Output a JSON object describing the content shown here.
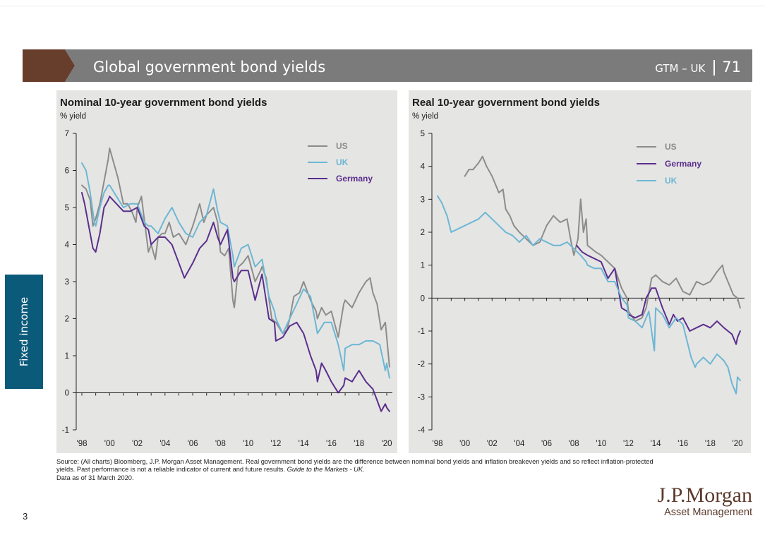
{
  "header": {
    "title": "Global government bond yields",
    "code": "GTM – UK",
    "page": "71",
    "accent_color": "#673d2c",
    "bar_color": "#7b7b7b"
  },
  "sidebar": {
    "label": "Fixed income",
    "color": "#0c5a7a"
  },
  "chart_data": [
    {
      "type": "line",
      "title": "Nominal 10-year government bond yields",
      "ylabel": "% yield",
      "ylim": [
        -1,
        7
      ],
      "yticks": [
        "-1",
        "0",
        "1",
        "2",
        "3",
        "4",
        "5",
        "6",
        "7"
      ],
      "xlim": [
        1998,
        2020.5
      ],
      "xtick_labels": [
        "'98",
        "'00",
        "'02",
        "'04",
        "'06",
        "'08",
        "'10",
        "'12",
        "'14",
        "'16",
        "'18",
        "'20"
      ],
      "legend_position": "top-right",
      "grid": false,
      "series": [
        {
          "name": "US",
          "color": "#8c8c8c",
          "x": [
            1998,
            1998.3,
            1998.6,
            1998.8,
            1999,
            1999.3,
            1999.6,
            1999.9,
            2000,
            2000.3,
            2000.6,
            2001,
            2001.3,
            2001.6,
            2001.9,
            2002,
            2002.3,
            2002.6,
            2002.8,
            2003,
            2003.3,
            2003.5,
            2003.8,
            2004,
            2004.3,
            2004.6,
            2005,
            2005.5,
            2006,
            2006.5,
            2006.8,
            2007,
            2007.5,
            2007.8,
            2008,
            2008.3,
            2008.6,
            2008.9,
            2009,
            2009.3,
            2009.6,
            2010,
            2010.5,
            2010.9,
            2011,
            2011.3,
            2011.7,
            2012,
            2012.5,
            2012.8,
            2013,
            2013.3,
            2013.7,
            2014,
            2014.5,
            2014.9,
            2015,
            2015.3,
            2015.6,
            2016,
            2016.5,
            2016.9,
            2017,
            2017.5,
            2018,
            2018.5,
            2018.8,
            2019,
            2019.3,
            2019.6,
            2019.9,
            2020,
            2020.2
          ],
          "values": [
            5.6,
            5.5,
            5.2,
            4.5,
            4.7,
            5.1,
            5.7,
            6.3,
            6.6,
            6.2,
            5.8,
            5.1,
            5.1,
            4.9,
            4.6,
            5.0,
            5.3,
            4.4,
            3.8,
            4.0,
            3.6,
            4.2,
            4.3,
            4.3,
            4.6,
            4.2,
            4.3,
            4.0,
            4.5,
            5.1,
            4.6,
            4.8,
            5.0,
            4.6,
            3.8,
            3.7,
            3.9,
            2.5,
            2.3,
            3.4,
            3.5,
            3.7,
            3.0,
            3.3,
            3.4,
            3.1,
            2.0,
            1.9,
            1.6,
            1.7,
            2.0,
            2.6,
            2.7,
            3.0,
            2.5,
            2.2,
            2.0,
            2.3,
            2.1,
            2.2,
            1.5,
            2.4,
            2.5,
            2.3,
            2.7,
            3.0,
            3.1,
            2.7,
            2.4,
            1.7,
            1.9,
            1.5,
            0.7
          ]
        },
        {
          "name": "UK",
          "color": "#6db7d4",
          "x": [
            1998,
            1998.3,
            1998.6,
            1998.9,
            1999,
            1999.3,
            1999.6,
            1999.9,
            2000,
            2000.5,
            2001,
            2001.5,
            2002,
            2002.5,
            2002.8,
            2003,
            2003.5,
            2004,
            2004.5,
            2005,
            2005.5,
            2006,
            2006.5,
            2007,
            2007.5,
            2007.8,
            2008,
            2008.5,
            2008.9,
            2009,
            2009.5,
            2010,
            2010.5,
            2011,
            2011.5,
            2011.9,
            2012,
            2012.5,
            2013,
            2013.5,
            2014,
            2014.5,
            2014.9,
            2015,
            2015.5,
            2016,
            2016.5,
            2016.9,
            2017,
            2017.5,
            2018,
            2018.5,
            2019,
            2019.5,
            2019.9,
            2020,
            2020.2
          ],
          "values": [
            6.2,
            6.0,
            5.4,
            4.6,
            4.5,
            5.0,
            5.4,
            5.6,
            5.6,
            5.3,
            5.0,
            5.1,
            5.1,
            4.6,
            4.5,
            4.5,
            4.3,
            4.7,
            5.0,
            4.6,
            4.3,
            4.2,
            4.6,
            4.8,
            5.5,
            4.9,
            4.6,
            4.5,
            3.7,
            3.4,
            3.9,
            4.0,
            3.4,
            3.6,
            2.6,
            2.2,
            2.0,
            1.6,
            2.0,
            2.4,
            2.8,
            2.6,
            1.8,
            1.6,
            1.9,
            1.9,
            1.3,
            0.6,
            1.2,
            1.3,
            1.3,
            1.4,
            1.4,
            1.3,
            0.6,
            0.8,
            0.4
          ]
        },
        {
          "name": "Germany",
          "color": "#5b2e8c",
          "x": [
            1998,
            1998.2,
            1998.5,
            1998.8,
            1999,
            1999.3,
            1999.6,
            1999.9,
            2000,
            2000.5,
            2001,
            2001.5,
            2002,
            2002.5,
            2002.8,
            2003,
            2003.5,
            2004,
            2004.5,
            2005,
            2005.4,
            2005.7,
            2006,
            2006.5,
            2007,
            2007.5,
            2007.8,
            2008,
            2008.5,
            2008.9,
            2009,
            2009.5,
            2010,
            2010.5,
            2011,
            2011.5,
            2011.9,
            2012,
            2012.5,
            2013,
            2013.5,
            2014,
            2014.5,
            2014.9,
            2015,
            2015.3,
            2015.6,
            2016,
            2016.5,
            2016.9,
            2017,
            2017.5,
            2018,
            2018.5,
            2019,
            2019.3,
            2019.6,
            2019.9,
            2020,
            2020.2
          ],
          "values": [
            5.4,
            5.1,
            4.5,
            3.9,
            3.8,
            4.3,
            5.0,
            5.2,
            5.3,
            5.1,
            4.9,
            4.9,
            5.0,
            4.5,
            4.4,
            4.0,
            4.2,
            4.2,
            4.0,
            3.5,
            3.1,
            3.3,
            3.5,
            3.9,
            4.1,
            4.6,
            4.2,
            4.0,
            4.4,
            3.1,
            3.0,
            3.3,
            3.3,
            2.5,
            3.2,
            2.0,
            1.9,
            1.4,
            1.5,
            1.8,
            1.9,
            1.6,
            1.0,
            0.6,
            0.3,
            0.8,
            0.6,
            0.3,
            0.0,
            0.2,
            0.4,
            0.3,
            0.6,
            0.3,
            0.1,
            -0.2,
            -0.5,
            -0.3,
            -0.4,
            -0.5
          ]
        }
      ]
    },
    {
      "type": "line",
      "title": "Real 10-year government bond yields",
      "ylabel": "% yield",
      "ylim": [
        -4,
        5
      ],
      "yticks": [
        "-4",
        "-3",
        "-2",
        "-1",
        "0",
        "1",
        "2",
        "3",
        "4",
        "5"
      ],
      "xlim": [
        1998,
        2020.5
      ],
      "xtick_labels": [
        "'98",
        "'00",
        "'02",
        "'04",
        "'06",
        "'08",
        "'10",
        "'12",
        "'14",
        "'16",
        "'18",
        "'20"
      ],
      "legend_position": "top-right",
      "grid": false,
      "series": [
        {
          "name": "US",
          "color": "#8c8c8c",
          "x": [
            2000,
            2000.3,
            2000.6,
            2001,
            2001.3,
            2001.6,
            2002,
            2002.3,
            2002.5,
            2002.8,
            2003,
            2003.3,
            2003.6,
            2004,
            2004.5,
            2005,
            2005.5,
            2006,
            2006.5,
            2007,
            2007.5,
            2007.8,
            2008,
            2008.3,
            2008.5,
            2008.7,
            2008.9,
            2009,
            2009.3,
            2009.6,
            2010,
            2010.5,
            2011,
            2011.5,
            2011.9,
            2012,
            2012.5,
            2013,
            2013.3,
            2013.7,
            2014,
            2014.5,
            2015,
            2015.5,
            2016,
            2016.5,
            2017,
            2017.5,
            2018,
            2018.5,
            2018.9,
            2019,
            2019.4,
            2019.7,
            2020,
            2020.2
          ],
          "values": [
            3.7,
            3.9,
            3.9,
            4.1,
            4.3,
            4.0,
            3.7,
            3.4,
            3.2,
            3.3,
            2.7,
            2.5,
            2.2,
            2.0,
            1.8,
            1.6,
            1.7,
            2.2,
            2.5,
            2.3,
            2.4,
            1.7,
            1.3,
            1.8,
            3.0,
            2.0,
            2.4,
            1.6,
            1.5,
            1.4,
            1.3,
            1.1,
            0.9,
            0.3,
            0.0,
            -0.4,
            -0.7,
            -0.6,
            -0.3,
            0.6,
            0.7,
            0.5,
            0.4,
            0.6,
            0.2,
            0.1,
            0.5,
            0.4,
            0.5,
            0.8,
            1.0,
            0.8,
            0.4,
            0.1,
            0.0,
            -0.3
          ]
        },
        {
          "name": "Germany",
          "color": "#5b2e8c",
          "x": [
            2008.2,
            2008.6,
            2009,
            2009.5,
            2010,
            2010.5,
            2011,
            2011.5,
            2011.9,
            2012,
            2012.5,
            2013,
            2013.3,
            2013.7,
            2014,
            2014.5,
            2015,
            2015.3,
            2015.6,
            2016,
            2016.5,
            2017,
            2017.5,
            2018,
            2018.5,
            2019,
            2019.3,
            2019.6,
            2019.9,
            2020,
            2020.2
          ],
          "values": [
            1.6,
            1.4,
            1.3,
            1.2,
            1.1,
            0.6,
            0.9,
            -0.3,
            -0.4,
            -0.5,
            -0.6,
            -0.5,
            0.0,
            0.3,
            0.3,
            -0.3,
            -0.8,
            -0.5,
            -0.7,
            -0.6,
            -1.0,
            -0.9,
            -0.8,
            -0.9,
            -0.7,
            -0.9,
            -1.0,
            -1.1,
            -1.4,
            -1.2,
            -1.0
          ]
        },
        {
          "name": "UK",
          "color": "#6db7d4",
          "x": [
            1998,
            1998.3,
            1998.7,
            1999,
            1999.5,
            2000,
            2000.5,
            2001,
            2001.5,
            2002,
            2002.5,
            2003,
            2003.5,
            2004,
            2004.5,
            2005,
            2005.5,
            2006,
            2006.5,
            2007,
            2007.5,
            2008,
            2008.5,
            2008.9,
            2009,
            2009.5,
            2010,
            2010.5,
            2011,
            2011.5,
            2011.9,
            2012,
            2012.5,
            2013,
            2013.5,
            2013.9,
            2014,
            2014.5,
            2015,
            2015.5,
            2016,
            2016.3,
            2016.6,
            2016.9,
            2017,
            2017.5,
            2018,
            2018.5,
            2019,
            2019.3,
            2019.6,
            2019.9,
            2020,
            2020.2
          ],
          "values": [
            3.1,
            2.9,
            2.5,
            2.0,
            2.1,
            2.2,
            2.3,
            2.4,
            2.6,
            2.4,
            2.2,
            2.0,
            1.9,
            1.7,
            1.9,
            1.6,
            1.8,
            1.7,
            1.6,
            1.6,
            1.7,
            1.5,
            1.3,
            1.1,
            1.0,
            0.9,
            0.9,
            0.5,
            0.5,
            0.0,
            -0.2,
            -0.6,
            -0.7,
            -0.9,
            -0.4,
            -1.6,
            -0.3,
            -0.5,
            -0.9,
            -0.6,
            -0.8,
            -1.3,
            -1.8,
            -2.1,
            -2.0,
            -1.8,
            -2.0,
            -1.7,
            -1.9,
            -2.1,
            -2.6,
            -2.9,
            -2.4,
            -2.5
          ]
        }
      ]
    }
  ],
  "source": {
    "text1": "Source: (All charts) Bloomberg, J.P. Morgan Asset Management. Real government bond yields are the difference between nominal bond yields and inflation breakeven yields and so reflect inflation-protected yields. Past performance is not a reliable indicator of current and future results. ",
    "italic": "Guide to the Markets - UK.",
    "text2": "Data as of 31 March 2020."
  },
  "slide_number": "3",
  "logo": {
    "main": "J.P.Morgan",
    "sub": "Asset Management"
  }
}
